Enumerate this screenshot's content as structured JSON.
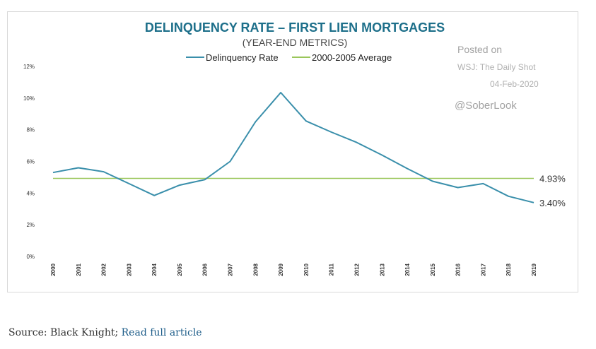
{
  "chart_data": {
    "type": "line",
    "title": "DELINQUENCY RATE – FIRST LIEN MORTGAGES",
    "subtitle": "(YEAR-END METRICS)",
    "categories": [
      "2000",
      "2001",
      "2002",
      "2003",
      "2004",
      "2005",
      "2006",
      "2007",
      "2008",
      "2009",
      "2010",
      "2011",
      "2012",
      "2013",
      "2014",
      "2015",
      "2016",
      "2017",
      "2018",
      "2019"
    ],
    "series": [
      {
        "name": "Delinquency Rate",
        "color": "#3a8fab",
        "values": [
          5.3,
          5.6,
          5.35,
          4.6,
          3.85,
          4.5,
          4.85,
          6.0,
          8.5,
          10.35,
          8.55,
          7.85,
          7.2,
          6.4,
          5.55,
          4.75,
          4.35,
          4.6,
          3.8,
          3.4
        ],
        "end_label": "3.40%"
      },
      {
        "name": "2000-2005 Average",
        "color": "#9ac65a",
        "values": [
          4.93,
          4.93,
          4.93,
          4.93,
          4.93,
          4.93,
          4.93,
          4.93,
          4.93,
          4.93,
          4.93,
          4.93,
          4.93,
          4.93,
          4.93,
          4.93,
          4.93,
          4.93,
          4.93,
          4.93
        ],
        "end_label": "4.93%"
      }
    ],
    "yticks": [
      "0%",
      "2%",
      "4%",
      "6%",
      "8%",
      "10%",
      "12%"
    ],
    "ylim": [
      0,
      12
    ],
    "grid": false,
    "legend_position": "top",
    "title_color": "#1d6f8a",
    "watermark": [
      "Posted on",
      "WSJ: The Daily Shot",
      "04-Feb-2020",
      "@SoberLook"
    ]
  },
  "caption": {
    "source_text": "Source: Black Knight; ",
    "link_text": "Read full article"
  }
}
